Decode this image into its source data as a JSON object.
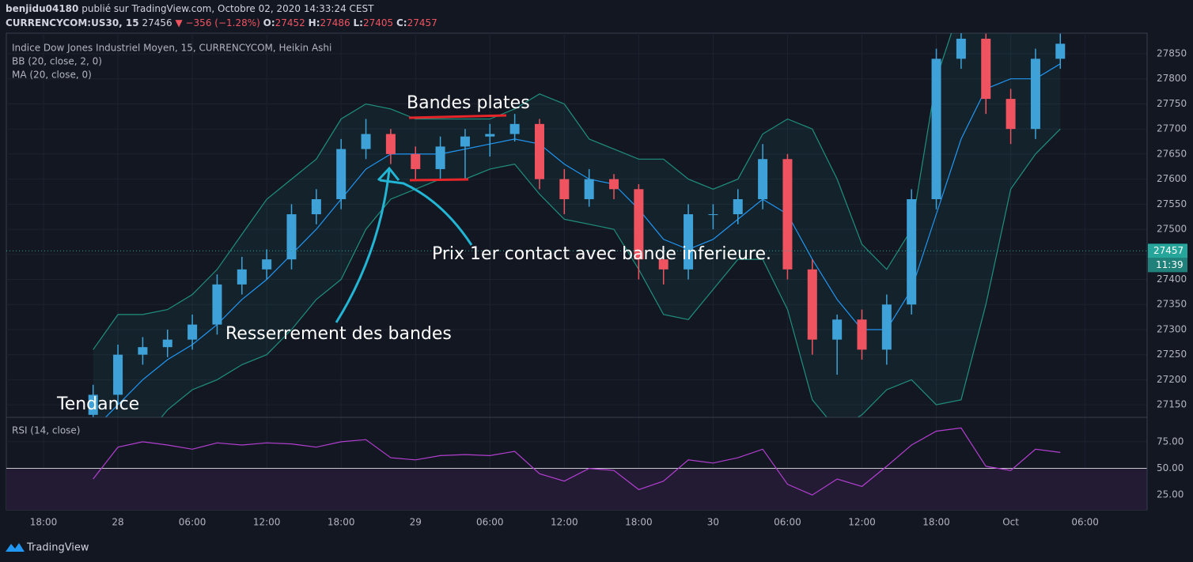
{
  "header": {
    "user": "benjidu04180",
    "published": "publié sur TradingView.com, Octobre 02, 2020 14:33:24 CEST",
    "symbol": "CURRENCYCOM:US30, 15",
    "last": 27456,
    "change": "▼ −356 (−1.28%)",
    "ohlc": [
      {
        "label": "O:",
        "value": 27452
      },
      {
        "label": "H:",
        "value": 27486
      },
      {
        "label": "L:",
        "value": 27405
      },
      {
        "label": "C:",
        "value": 27457
      }
    ]
  },
  "footer": {
    "brand": "TradingView"
  },
  "chart_data": {
    "type": "candlestick",
    "title": "Indice Dow Jones Industriel Moyen, 15, CURRENCYCOM, Heikin Ashi",
    "x": [
      -2,
      0,
      2,
      4,
      6,
      8,
      10,
      12,
      14,
      16,
      18,
      20,
      22,
      24,
      26,
      28,
      30,
      32,
      34,
      36,
      38,
      40,
      42,
      44,
      46,
      48,
      50,
      52,
      54,
      56,
      58,
      60,
      62,
      64,
      66,
      68,
      70,
      72,
      74,
      76
    ],
    "open": [
      27130,
      27170,
      27250,
      27265,
      27280,
      27310,
      27390,
      27420,
      27440,
      27530,
      27560,
      27660,
      27690,
      27650,
      27620,
      27665,
      27685,
      27690,
      27710,
      27600,
      27560,
      27600,
      27580,
      27440,
      27420,
      27530,
      27530,
      27560,
      27640,
      27420,
      27280,
      27320,
      27260,
      27350,
      27560,
      27840,
      27880,
      27760,
      27700,
      27840
    ],
    "high": [
      27190,
      27270,
      27285,
      27300,
      27330,
      27410,
      27445,
      27460,
      27550,
      27580,
      27680,
      27720,
      27700,
      27665,
      27685,
      27700,
      27710,
      27730,
      27720,
      27620,
      27620,
      27610,
      27590,
      27460,
      27550,
      27550,
      27580,
      27670,
      27650,
      27440,
      27330,
      27340,
      27370,
      27580,
      27860,
      27900,
      27890,
      27780,
      27860,
      27890
    ],
    "low": [
      27110,
      27150,
      27230,
      27245,
      27260,
      27290,
      27370,
      27400,
      27420,
      27510,
      27540,
      27640,
      27630,
      27600,
      27600,
      27600,
      27645,
      27675,
      27580,
      27530,
      27545,
      27560,
      27400,
      27390,
      27400,
      27500,
      27510,
      27540,
      27400,
      27250,
      27210,
      27240,
      27230,
      27330,
      27540,
      27820,
      27730,
      27670,
      27680,
      27820
    ],
    "close": [
      27170,
      27250,
      27265,
      27280,
      27310,
      27390,
      27420,
      27440,
      27530,
      27560,
      27660,
      27690,
      27650,
      27620,
      27665,
      27685,
      27690,
      27710,
      27600,
      27560,
      27600,
      27580,
      27440,
      27420,
      27530,
      27530,
      27560,
      27640,
      27420,
      27280,
      27320,
      27260,
      27350,
      27560,
      27840,
      27880,
      27760,
      27700,
      27840,
      27870
    ],
    "up_color": "#3ea2d8",
    "down_color": "#ef5360",
    "xlim": [
      -9,
      83
    ],
    "xticks": [
      {
        "value": -6,
        "label": "18:00"
      },
      {
        "value": 0,
        "label": "28"
      },
      {
        "value": 6,
        "label": "06:00"
      },
      {
        "value": 12,
        "label": "12:00"
      },
      {
        "value": 18,
        "label": "18:00"
      },
      {
        "value": 24,
        "label": "29"
      },
      {
        "value": 30,
        "label": "06:00"
      },
      {
        "value": 36,
        "label": "12:00"
      },
      {
        "value": 42,
        "label": "18:00"
      },
      {
        "value": 48,
        "label": "30"
      },
      {
        "value": 54,
        "label": "06:00"
      },
      {
        "value": 60,
        "label": "12:00"
      },
      {
        "value": 66,
        "label": "18:00"
      },
      {
        "value": 72,
        "label": "Oct"
      },
      {
        "value": 78,
        "label": "06:00"
      }
    ],
    "ylim": [
      27125,
      27891
    ],
    "yticks": [
      27150,
      27200,
      27250,
      27300,
      27350,
      27400,
      27450,
      27500,
      27550,
      27600,
      27650,
      27700,
      27750,
      27800,
      27850
    ],
    "grid": true,
    "last_price": 27457,
    "last_price_color": "#26a69a",
    "countdown": "11:39",
    "bb": {
      "name": "BB (20, close, 2, 0)",
      "color": "#1f8f7e",
      "upper": [
        27260,
        27330,
        27330,
        27340,
        27370,
        27420,
        27490,
        27560,
        27600,
        27640,
        27720,
        27750,
        27740,
        27720,
        27720,
        27720,
        27720,
        27740,
        27770,
        27750,
        27680,
        27660,
        27640,
        27640,
        27600,
        27580,
        27600,
        27690,
        27720,
        27700,
        27600,
        27470,
        27420,
        27500,
        27800,
        27950,
        27950,
        27950,
        27900,
        27900
      ],
      "lower": [
        26950,
        27000,
        27080,
        27140,
        27180,
        27200,
        27230,
        27250,
        27300,
        27360,
        27400,
        27500,
        27560,
        27580,
        27600,
        27600,
        27620,
        27630,
        27570,
        27520,
        27510,
        27500,
        27420,
        27330,
        27320,
        27380,
        27440,
        27440,
        27340,
        27160,
        27100,
        27130,
        27180,
        27200,
        27150,
        27160,
        27350,
        27580,
        27650,
        27700
      ]
    },
    "ma": {
      "name": "MA (20, close, 0)",
      "color": "#2196f3",
      "values": [
        27100,
        27150,
        27200,
        27240,
        27270,
        27310,
        27360,
        27400,
        27450,
        27500,
        27560,
        27620,
        27650,
        27650,
        27650,
        27660,
        27670,
        27680,
        27670,
        27630,
        27600,
        27590,
        27540,
        27480,
        27460,
        27480,
        27520,
        27560,
        27530,
        27440,
        27360,
        27300,
        27300,
        27380,
        27530,
        27680,
        27780,
        27800,
        27800,
        27830
      ]
    },
    "rsi": {
      "name": "RSI (14, close)",
      "color": "#b23fd0",
      "values": [
        40,
        70,
        75,
        72,
        68,
        74,
        72,
        74,
        73,
        70,
        75,
        77,
        60,
        58,
        62,
        63,
        62,
        66,
        45,
        38,
        50,
        48,
        30,
        38,
        58,
        55,
        60,
        68,
        35,
        25,
        40,
        33,
        52,
        72,
        85,
        88,
        52,
        48,
        68,
        65
      ],
      "ylim": [
        11,
        98
      ],
      "yticks": [
        {
          "value": 25,
          "label": "25.00"
        },
        {
          "value": 50,
          "label": "50.00"
        },
        {
          "value": 75,
          "label": "75.00"
        }
      ]
    },
    "annotations": [
      "Bandes plates",
      "Prix 1er contact avec bande inferieure.",
      "Resserrement des bandes",
      "Tendance"
    ]
  }
}
